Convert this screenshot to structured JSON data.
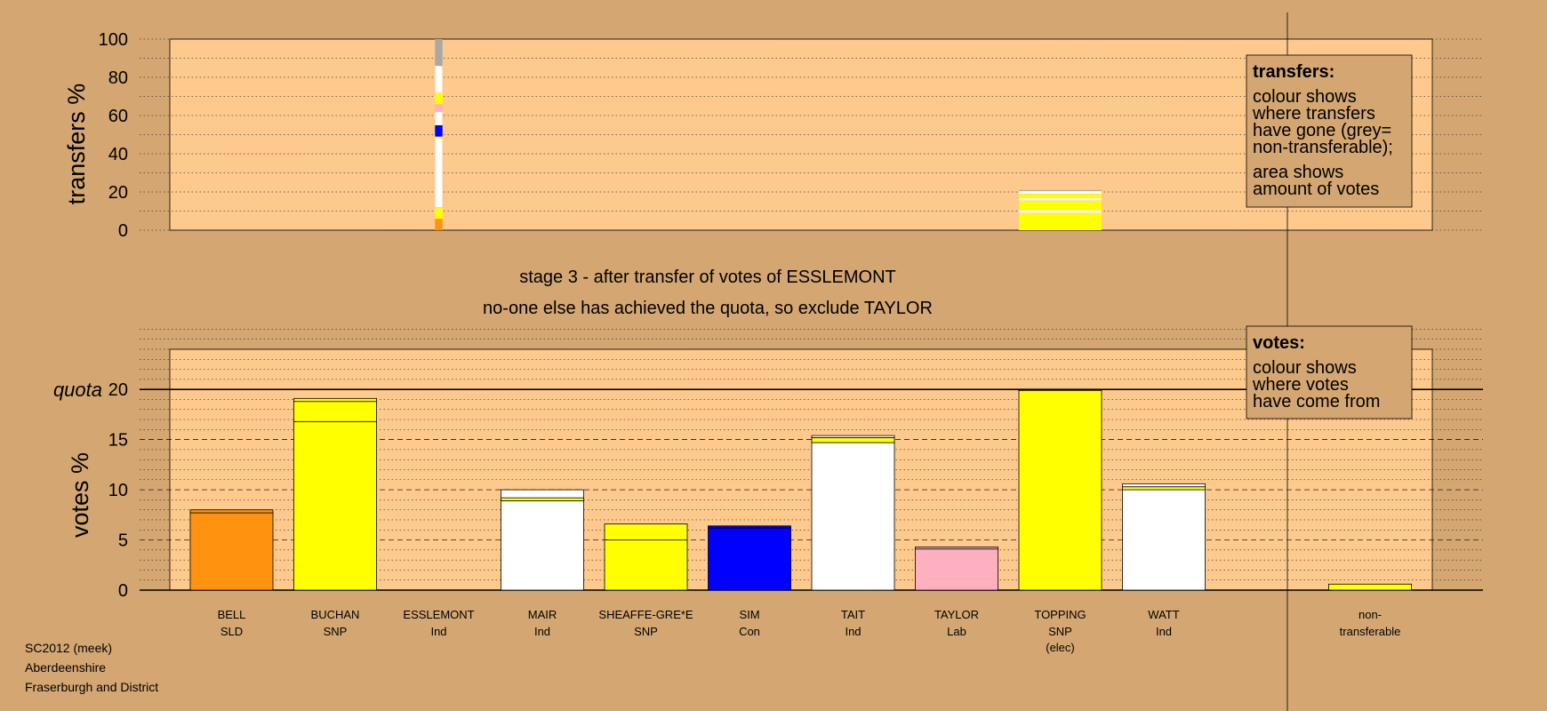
{
  "colors": {
    "background": "#d4a772",
    "plot": "#fec98c",
    "SLD": "#ff9310",
    "SNP": "#ffff00",
    "Ind": "#ffffff",
    "Con": "#0000ff",
    "Lab": "#ffb0c0",
    "nontransferable": "#a8a8a8",
    "black": "#000000"
  },
  "stage": {
    "line1": "stage 3 - after transfer of votes of ESSLEMONT",
    "line2": "no-one else has achieved the quota, so exclude TAYLOR"
  },
  "legend_transfers": {
    "heading": "transfers:",
    "lines": [
      "colour shows",
      "where transfers",
      "have gone (grey=",
      "non-transferable);"
    ],
    "lines2": [
      "area shows",
      "amount of votes"
    ]
  },
  "legend_votes": {
    "heading": "votes:",
    "lines": [
      "colour shows",
      "where votes",
      "have come from"
    ]
  },
  "footer": {
    "line1": "SC2012 (meek)",
    "line2": "Aberdeenshire",
    "line3": "Fraserburgh and District"
  },
  "chart_data": [
    {
      "type": "bar",
      "ylabel": "transfers %",
      "ylim": [
        0,
        100
      ],
      "yticks": [
        0,
        20,
        40,
        60,
        80,
        100
      ],
      "grid": true,
      "legend": "top-right",
      "transfers_from": [
        {
          "candidate": "ESSLEMONT",
          "width_fraction": 0.09,
          "segments": [
            {
              "to": "BELL",
              "party": "SLD",
              "value": 6
            },
            {
              "to": "BUCHAN",
              "party": "SNP",
              "value": 6
            },
            {
              "to": "MAIR",
              "party": "Ind",
              "value": 36
            },
            {
              "to": "SHEAFFE-GRE*E",
              "party": "SNP",
              "value": 1
            },
            {
              "to": "SIM",
              "party": "Con",
              "value": 6
            },
            {
              "to": "TAIT",
              "party": "Ind",
              "value": 7
            },
            {
              "to": "TAYLOR",
              "party": "Lab",
              "value": 4
            },
            {
              "to": "TOPPING",
              "party": "SNP",
              "value": 6
            },
            {
              "to": "WATT",
              "party": "Ind",
              "value": 14
            },
            {
              "to": "non-transferable",
              "party": "nontransferable",
              "value": 14
            }
          ]
        },
        {
          "candidate": "TOPPING",
          "width_fraction": 1.0,
          "segments": [
            {
              "to": "BUCHAN",
              "party": "SNP",
              "value": 9
            },
            {
              "to": "MAIR",
              "party": "Ind",
              "value": 1.5
            },
            {
              "to": "SHEAFFE-GRE*E",
              "party": "SNP",
              "value": 5
            },
            {
              "to": "TAIT",
              "party": "Ind",
              "value": 1.5
            },
            {
              "to": "WATT",
              "party": "SNP",
              "value": 2
            },
            {
              "to": "WATT",
              "party": "Ind",
              "value": 1.5
            },
            {
              "to": "non-transferable",
              "party": "nontransferable",
              "value": 0.5
            }
          ]
        }
      ]
    },
    {
      "type": "bar",
      "ylabel": "votes %",
      "ylim": [
        0,
        24
      ],
      "yticks": [
        0,
        5,
        10,
        15,
        20
      ],
      "quota": 20,
      "quota_label": "quota",
      "grid": true,
      "legend": "top-right",
      "candidates": [
        {
          "name": "BELL",
          "party": "SLD",
          "colour": "SLD",
          "segments": [
            {
              "colour": "SLD",
              "value": 7.7
            },
            {
              "colour": "SLD",
              "value": 0.3
            }
          ]
        },
        {
          "name": "BUCHAN",
          "party": "SNP",
          "colour": "SNP",
          "segments": [
            {
              "colour": "SNP",
              "value": 16.8
            },
            {
              "colour": "SNP",
              "value": 2.0
            },
            {
              "colour": "SNP",
              "value": 0.3
            }
          ]
        },
        {
          "name": "ESSLEMONT",
          "party": "Ind",
          "colour": "Ind",
          "segments": []
        },
        {
          "name": "MAIR",
          "party": "Ind",
          "colour": "Ind",
          "segments": [
            {
              "colour": "Ind",
              "value": 8.9
            },
            {
              "colour": "SNP",
              "value": 0.3
            },
            {
              "colour": "Ind",
              "value": 0.8
            }
          ]
        },
        {
          "name": "SHEAFFE-GRE*E",
          "party": "SNP",
          "colour": "SNP",
          "segments": [
            {
              "colour": "SNP",
              "value": 5.0
            },
            {
              "colour": "SNP",
              "value": 1.6
            }
          ]
        },
        {
          "name": "SIM",
          "party": "Con",
          "colour": "Con",
          "segments": [
            {
              "colour": "Con",
              "value": 6.2
            },
            {
              "colour": "Con",
              "value": 0.2
            }
          ]
        },
        {
          "name": "TAIT",
          "party": "Ind",
          "colour": "Ind",
          "segments": [
            {
              "colour": "Ind",
              "value": 14.7
            },
            {
              "colour": "SNP",
              "value": 0.5
            },
            {
              "colour": "Ind",
              "value": 0.2
            }
          ]
        },
        {
          "name": "TAYLOR",
          "party": "Lab",
          "colour": "Lab",
          "segments": [
            {
              "colour": "Lab",
              "value": 4.1
            },
            {
              "colour": "Lab",
              "value": 0.2
            }
          ]
        },
        {
          "name": "TOPPING",
          "party": "SNP",
          "note": "(elec)",
          "colour": "SNP",
          "segments": [
            {
              "colour": "SNP",
              "value": 19.9
            }
          ]
        },
        {
          "name": "WATT",
          "party": "Ind",
          "colour": "Ind",
          "segments": [
            {
              "colour": "Ind",
              "value": 10.0
            },
            {
              "colour": "SNP",
              "value": 0.3
            },
            {
              "colour": "Ind",
              "value": 0.3
            }
          ]
        }
      ],
      "nontransferable": {
        "line1": "non-",
        "line2": "transferable",
        "value": 0.6
      }
    }
  ]
}
